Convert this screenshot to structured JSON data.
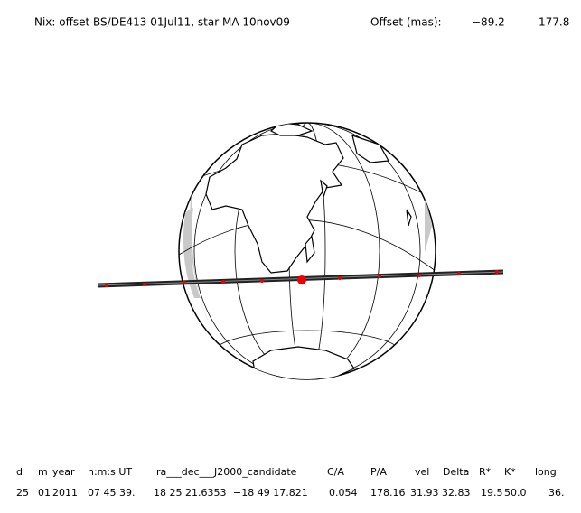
{
  "title": {
    "label": "Nix: offset BS/DE413 01Jul11, star MA 10nov09",
    "offset_label": "Offset (mas):",
    "offset_values": [
      "−89.2",
      "177.8"
    ]
  },
  "table": {
    "headers": [
      "d",
      "m",
      "year",
      "h:m:s UT",
      "ra___dec___J2000_candidate",
      "C/A",
      "P/A",
      "vel",
      "Delta",
      "R*",
      "K*",
      "long"
    ],
    "rows": [
      [
        "25",
        "01",
        "2011",
        "07 45 39.",
        "18 25 21.6353",
        "−18 49  17.821",
        "0.054",
        "178.16",
        "31.93",
        "32.83",
        "19.5",
        "50.0",
        "36."
      ]
    ]
  }
}
